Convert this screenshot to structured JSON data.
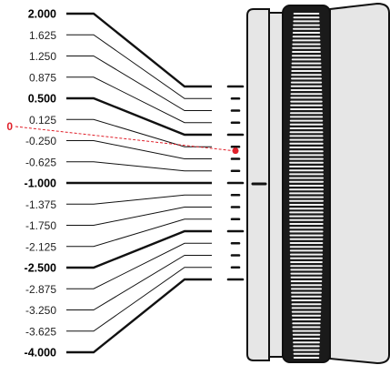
{
  "scale": {
    "values": [
      {
        "label": "2.000",
        "value": 2.0,
        "major": true
      },
      {
        "label": "1.625",
        "value": 1.625,
        "major": false
      },
      {
        "label": "1.250",
        "value": 1.25,
        "major": false
      },
      {
        "label": "0.875",
        "value": 0.875,
        "major": false
      },
      {
        "label": "0.500",
        "value": 0.5,
        "major": true
      },
      {
        "label": "0.125",
        "value": 0.125,
        "major": false
      },
      {
        "label": "-0.250",
        "value": -0.25,
        "major": false
      },
      {
        "label": "-0.625",
        "value": -0.625,
        "major": false
      },
      {
        "label": "-1.000",
        "value": -1.0,
        "major": true
      },
      {
        "label": "-1.375",
        "value": -1.375,
        "major": false
      },
      {
        "label": "-1.750",
        "value": -1.75,
        "major": false
      },
      {
        "label": "-2.125",
        "value": -2.125,
        "major": false
      },
      {
        "label": "-2.500",
        "value": -2.5,
        "major": true
      },
      {
        "label": "-2.875",
        "value": -2.875,
        "major": false
      },
      {
        "label": "-3.250",
        "value": -3.25,
        "major": false
      },
      {
        "label": "-3.625",
        "value": -3.625,
        "major": false
      },
      {
        "label": "-4.000",
        "value": -4.0,
        "major": true
      }
    ],
    "zero": {
      "label": "0",
      "value": 0
    }
  },
  "colors": {
    "line": "#111111",
    "zero_marker": "#e0202a",
    "housing_fill": "#e6e6e6",
    "housing_stroke": "#111111",
    "knurl_dark": "#1a1a1a",
    "knurl_light": "#f2f2f2"
  }
}
